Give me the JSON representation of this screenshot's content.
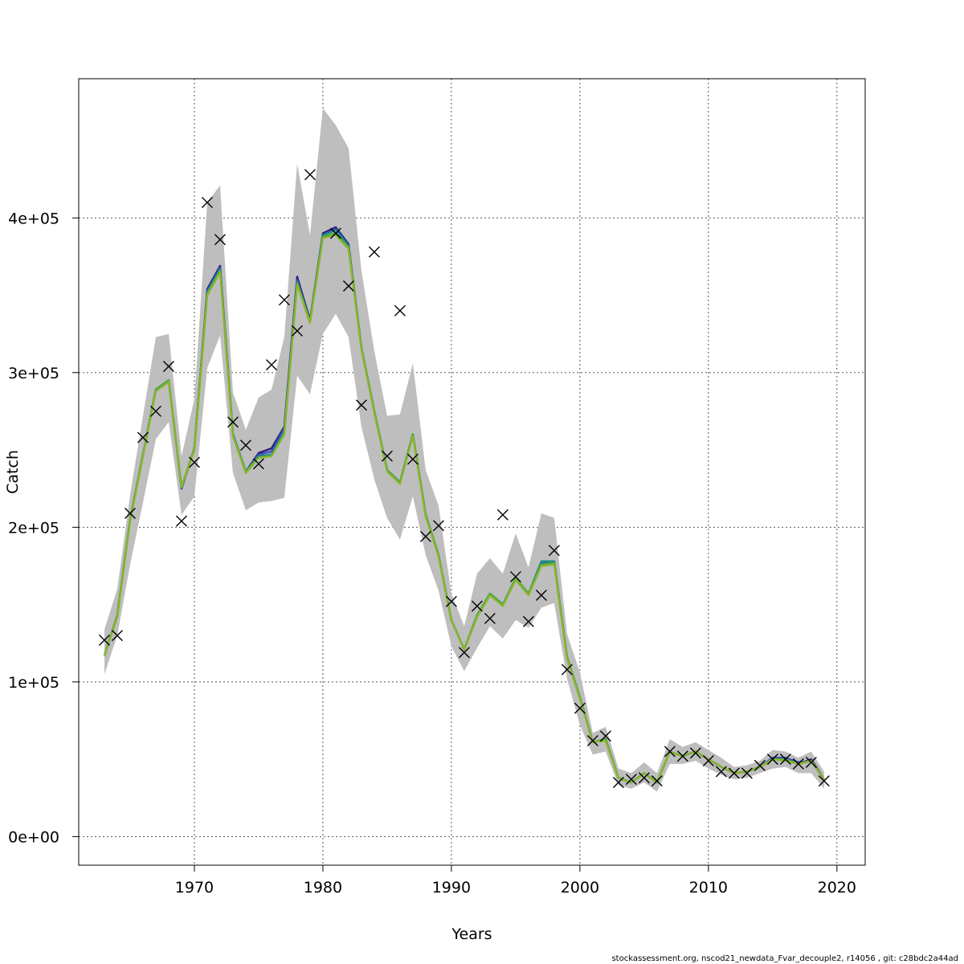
{
  "chart_data": {
    "type": "line",
    "xlabel": "Years",
    "ylabel": "Catch",
    "xlim": [
      1961,
      2022.2
    ],
    "ylim": [
      -18500,
      490000
    ],
    "x_ticks": [
      1970,
      1980,
      1990,
      2000,
      2010,
      2020
    ],
    "x_tick_labels": [
      "1970",
      "1980",
      "1990",
      "2000",
      "2010",
      "2020"
    ],
    "y_ticks": [
      0,
      100000,
      200000,
      300000,
      400000
    ],
    "y_tick_labels": [
      "0e+00",
      "1e+05",
      "2e+05",
      "3e+05",
      "4e+05"
    ],
    "grid": true,
    "footer": "stockassessment.org, nscod21_newdata_Fvar_decouple2, r14056 , git: c28bdc2a44ad",
    "colors": {
      "band": "#bebebe",
      "observed_marker": "#000000",
      "series": [
        "#2b1a78",
        "#3b4cc0",
        "#1a8a8a",
        "#46a846",
        "#8ab52a"
      ]
    },
    "years": [
      1963,
      1964,
      1965,
      1966,
      1967,
      1968,
      1969,
      1970,
      1971,
      1972,
      1973,
      1974,
      1975,
      1976,
      1977,
      1978,
      1979,
      1980,
      1981,
      1982,
      1983,
      1984,
      1985,
      1986,
      1987,
      1988,
      1989,
      1990,
      1991,
      1992,
      1993,
      1994,
      1995,
      1996,
      1997,
      1998,
      1999,
      2000,
      2001,
      2002,
      2003,
      2004,
      2005,
      2006,
      2007,
      2008,
      2009,
      2010,
      2011,
      2012,
      2013,
      2014,
      2015,
      2016,
      2017,
      2018,
      2019
    ],
    "band_upper": [
      134000,
      160000,
      221000,
      272000,
      323000,
      325000,
      246000,
      283000,
      410000,
      421000,
      287000,
      263000,
      284000,
      289000,
      323000,
      435000,
      389000,
      471000,
      460000,
      445000,
      366000,
      314000,
      272000,
      273000,
      306000,
      237000,
      214000,
      157000,
      136000,
      170000,
      180000,
      170000,
      196000,
      174000,
      209000,
      206000,
      131000,
      106000,
      67000,
      71000,
      44000,
      41000,
      48000,
      41000,
      63000,
      58000,
      61000,
      56000,
      51000,
      45000,
      46000,
      49000,
      56000,
      55000,
      51000,
      55000,
      42000
    ],
    "band_lower": [
      105000,
      130000,
      176000,
      216000,
      257000,
      268000,
      208000,
      220000,
      303000,
      324000,
      235000,
      211000,
      216000,
      217000,
      219000,
      298000,
      286000,
      325000,
      338000,
      323000,
      265000,
      231000,
      206000,
      192000,
      220000,
      182000,
      159000,
      123000,
      107000,
      122000,
      136000,
      128000,
      140000,
      135000,
      148000,
      151000,
      102000,
      72000,
      53000,
      55000,
      33000,
      31000,
      35000,
      29000,
      47000,
      47000,
      49000,
      44000,
      40000,
      37000,
      38000,
      41000,
      44000,
      45000,
      41000,
      41000,
      31000
    ],
    "series": [
      {
        "values": [
          117000,
          143000,
          205000,
          247000,
          289000,
          295000,
          225000,
          251000,
          354000,
          369000,
          260000,
          236000,
          248000,
          251000,
          265000,
          362000,
          334000,
          390000,
          394000,
          383000,
          316000,
          275000,
          237000,
          229000,
          260000,
          208000,
          182000,
          140000,
          121000,
          143000,
          157000,
          150000,
          167000,
          157000,
          176000,
          177000,
          116000,
          90000,
          61000,
          63000,
          38000,
          35000,
          41000,
          35000,
          55000,
          52000,
          55000,
          50000,
          45000,
          41000,
          42000,
          45000,
          50000,
          50000,
          47000,
          50000,
          37000
        ]
      },
      {
        "values": [
          117000,
          143000,
          205000,
          247000,
          289000,
          295000,
          225000,
          251000,
          353000,
          368000,
          260000,
          236000,
          247000,
          249000,
          264000,
          360000,
          333000,
          389000,
          393000,
          382000,
          316000,
          275000,
          237000,
          229000,
          260000,
          208000,
          182000,
          140000,
          121000,
          143000,
          157000,
          150000,
          167000,
          157000,
          177000,
          178000,
          116000,
          90000,
          61000,
          63000,
          38000,
          35000,
          41000,
          35000,
          55000,
          52000,
          55000,
          50000,
          45000,
          41000,
          42000,
          45000,
          51000,
          51000,
          48000,
          49000,
          37000
        ]
      },
      {
        "values": [
          117000,
          143000,
          205000,
          247000,
          289000,
          295000,
          226000,
          251000,
          352000,
          367000,
          260000,
          236000,
          246000,
          247000,
          262000,
          359000,
          333000,
          389000,
          392000,
          382000,
          316000,
          275000,
          237000,
          229000,
          260000,
          208000,
          182000,
          140000,
          121000,
          143000,
          157000,
          150000,
          167000,
          157000,
          178000,
          178000,
          116000,
          90000,
          61000,
          63000,
          38000,
          35000,
          41000,
          35000,
          55000,
          52000,
          55000,
          50000,
          45000,
          41000,
          42000,
          45000,
          50000,
          50000,
          47000,
          49000,
          37000
        ]
      },
      {
        "values": [
          117000,
          143000,
          205000,
          247000,
          289000,
          295000,
          226000,
          251000,
          351000,
          366000,
          259000,
          236000,
          245000,
          246000,
          261000,
          358000,
          333000,
          388000,
          390000,
          381000,
          316000,
          275000,
          237000,
          229000,
          260000,
          208000,
          182000,
          140000,
          121000,
          143000,
          157000,
          150000,
          167000,
          157000,
          176000,
          177000,
          116000,
          90000,
          61000,
          63000,
          38000,
          35000,
          41000,
          35000,
          55000,
          52000,
          55000,
          50000,
          45000,
          41000,
          42000,
          45000,
          50000,
          50000,
          47000,
          49000,
          37000
        ]
      },
      {
        "values": [
          117000,
          142000,
          204000,
          246000,
          288000,
          294000,
          226000,
          250000,
          350000,
          365000,
          259000,
          235000,
          245000,
          246000,
          260000,
          357000,
          332000,
          387000,
          389000,
          380000,
          315000,
          274000,
          236000,
          228000,
          259000,
          207000,
          181000,
          140000,
          121000,
          142000,
          156000,
          149000,
          166000,
          156000,
          175000,
          176000,
          115000,
          89000,
          61000,
          62000,
          38000,
          35000,
          41000,
          35000,
          55000,
          52000,
          55000,
          50000,
          45000,
          41000,
          42000,
          45000,
          50000,
          49000,
          47000,
          49000,
          37000
        ]
      }
    ],
    "observed": [
      127000,
      130000,
      209000,
      258000,
      275000,
      304000,
      204000,
      242000,
      410000,
      386000,
      268000,
      253000,
      241000,
      305000,
      347000,
      327000,
      428000,
      null,
      390000,
      356000,
      279000,
      378000,
      246000,
      340000,
      244000,
      194000,
      201000,
      152000,
      119000,
      149000,
      141000,
      208000,
      168000,
      139000,
      156000,
      185000,
      108000,
      83000,
      62000,
      65000,
      35000,
      37000,
      38000,
      36000,
      55000,
      52000,
      54000,
      49000,
      42000,
      41000,
      41000,
      46000,
      50000,
      50000,
      47000,
      48000,
      36000
    ]
  }
}
